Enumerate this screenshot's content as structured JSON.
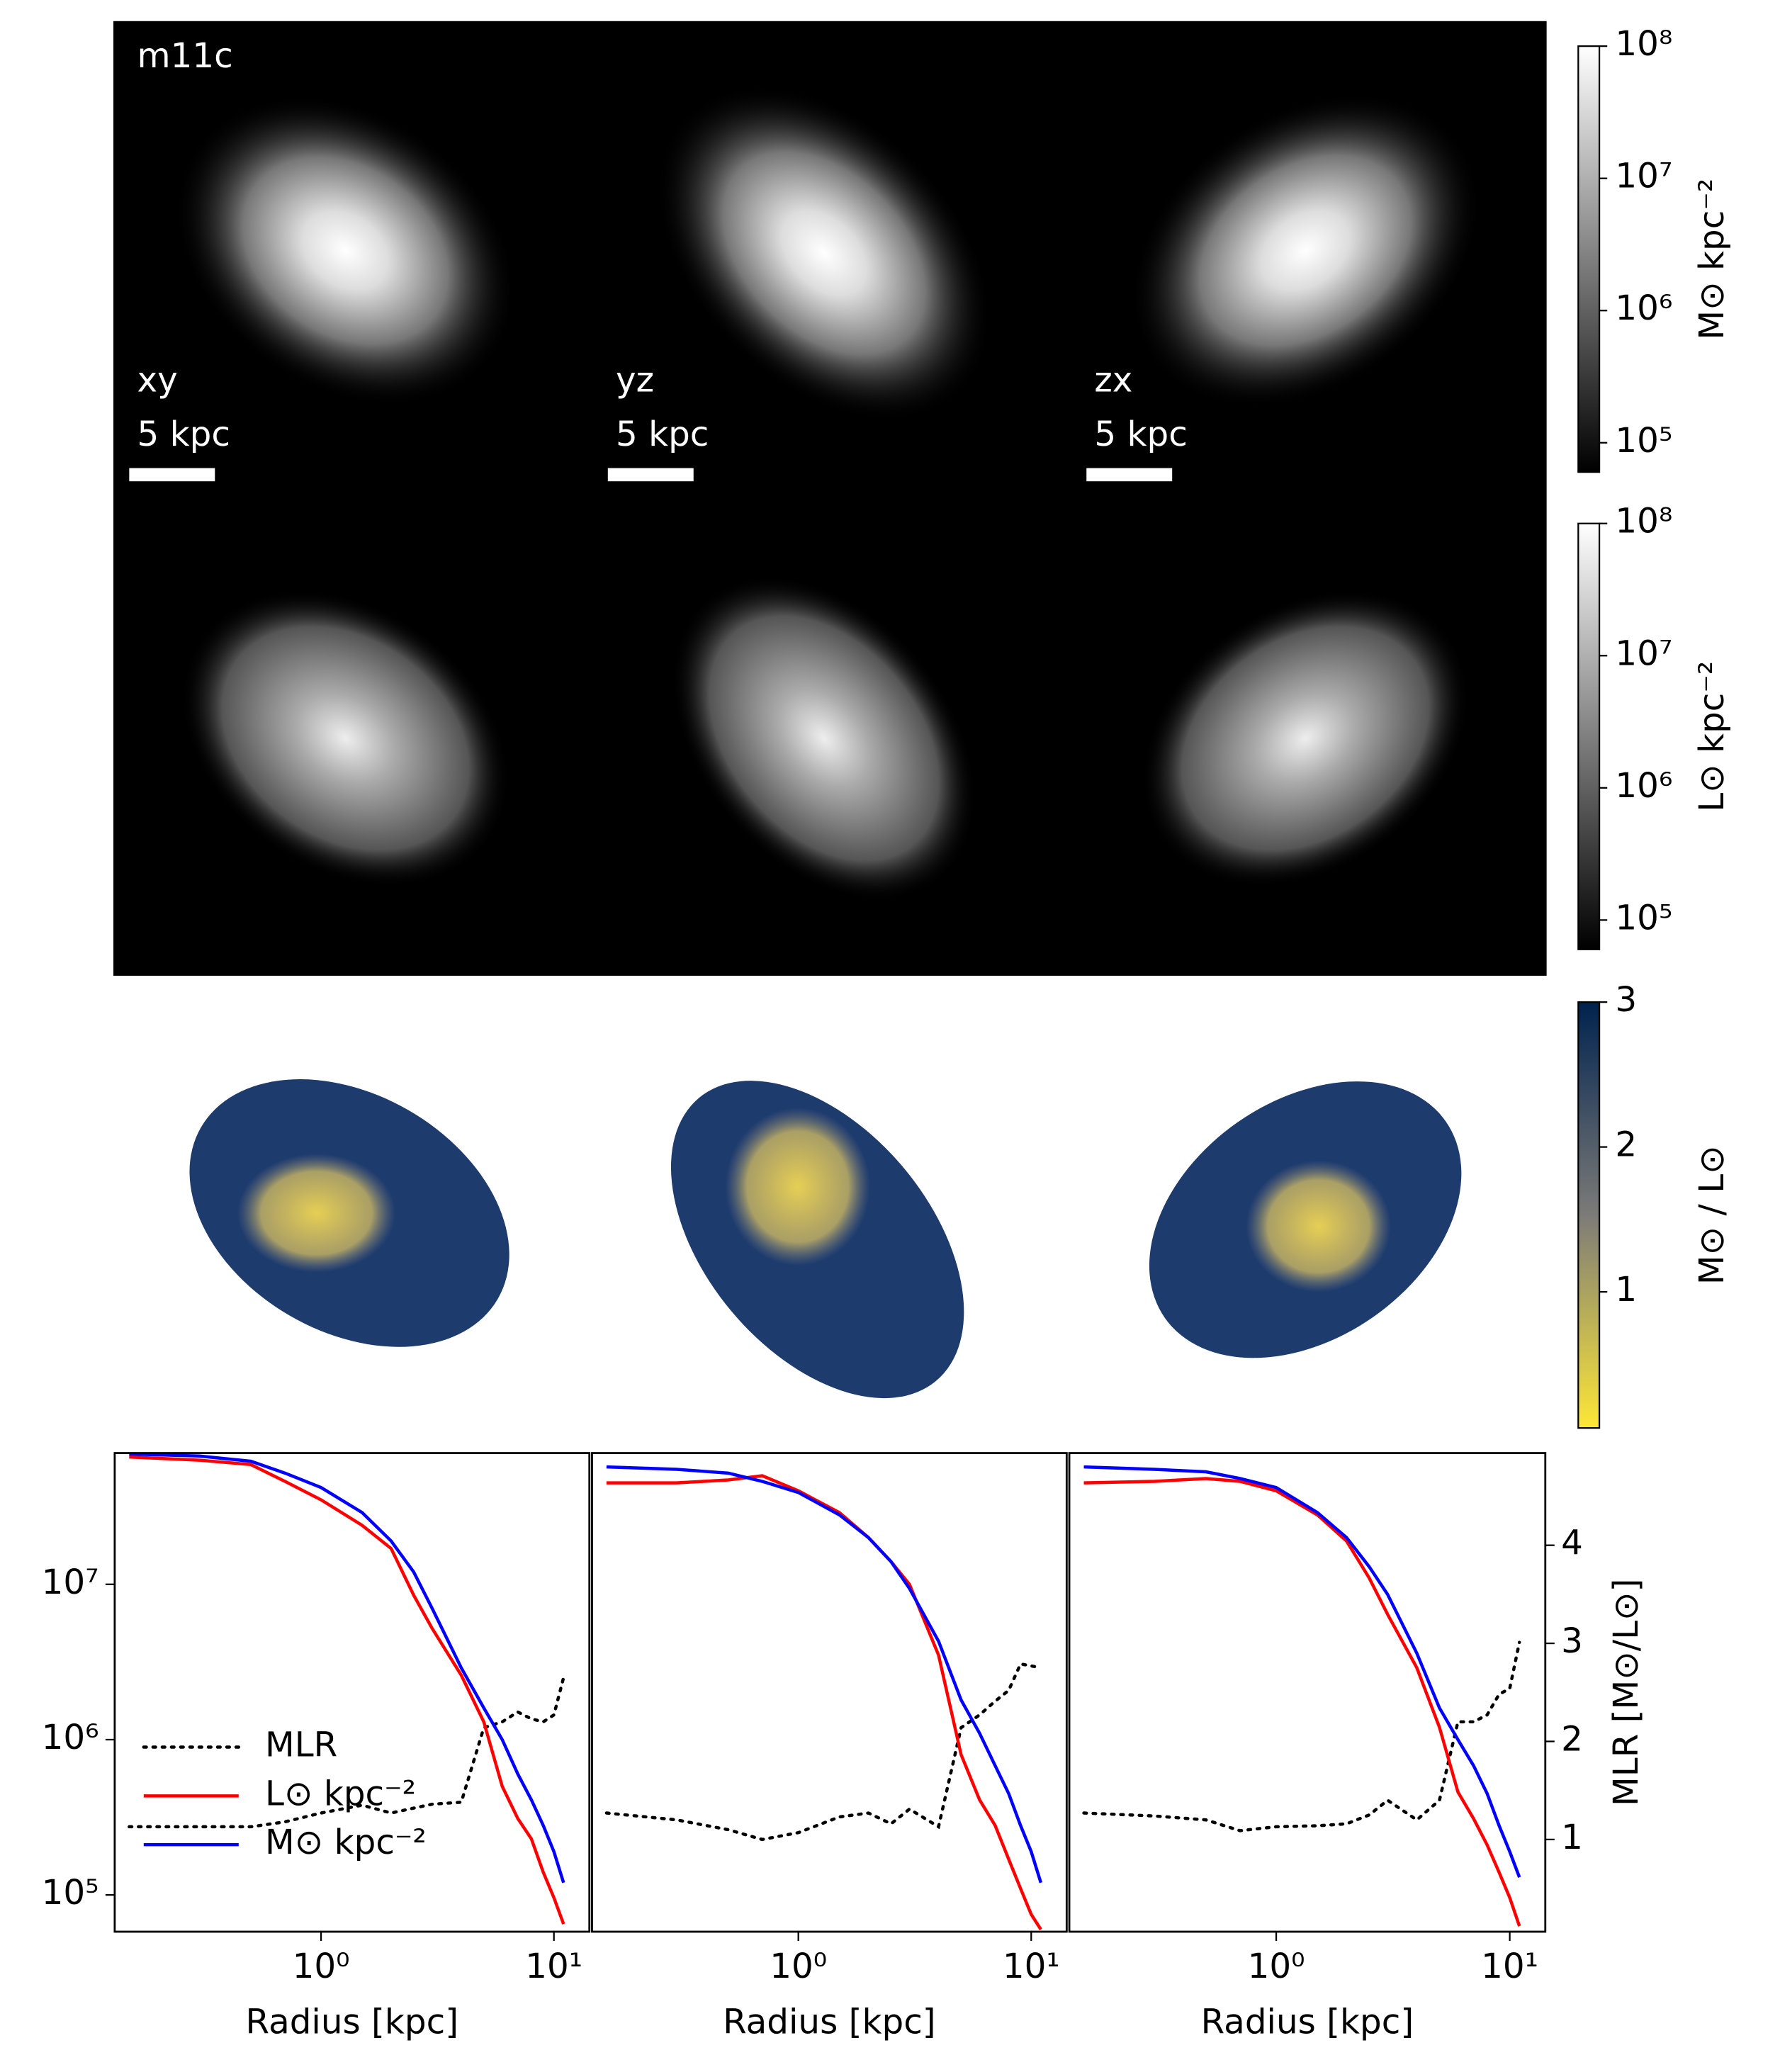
{
  "maps": {
    "title": "m11c",
    "projections": [
      "xy",
      "yz",
      "zx"
    ],
    "scale_bar": "5 kpc"
  },
  "colorbars": [
    {
      "label": "M⊙ kpc⁻²",
      "log": true,
      "colormap": "gray",
      "lim": [
        60000,
        100000000
      ],
      "ticks": [
        {
          "value": 100000,
          "label": "10⁵"
        },
        {
          "value": 1000000,
          "label": "10⁶"
        },
        {
          "value": 10000000,
          "label": "10⁷"
        },
        {
          "value": 100000000,
          "label": "10⁸"
        }
      ]
    },
    {
      "label": "L⊙ kpc⁻²",
      "log": true,
      "colormap": "gray",
      "lim": [
        60000,
        100000000
      ],
      "ticks": [
        {
          "value": 100000,
          "label": "10⁵"
        },
        {
          "value": 1000000,
          "label": "10⁶"
        },
        {
          "value": 10000000,
          "label": "10⁷"
        },
        {
          "value": 100000000,
          "label": "10⁸"
        }
      ]
    },
    {
      "label": "M⊙ / L⊙",
      "log": false,
      "colormap": "cividis",
      "lim": [
        0.06,
        3
      ],
      "ticks": [
        1,
        2,
        3
      ]
    }
  ],
  "chart_data": [
    {
      "type": "line",
      "xlabel": "Radius [kpc]",
      "xlog": true,
      "ylog": true,
      "legend": "lower left",
      "xlim": [
        0.13,
        14.2
      ],
      "xticks": [
        {
          "value": 1,
          "label": "10⁰"
        },
        {
          "value": 10,
          "label": "10¹"
        }
      ],
      "ylim": [
        58000,
        70000000
      ],
      "yticks": [
        {
          "value": 100000,
          "label": "10⁵"
        },
        {
          "value": 1000000,
          "label": "10⁶"
        },
        {
          "value": 10000000,
          "label": "10⁷"
        }
      ],
      "y2lim": [
        0.06,
        4.94
      ],
      "x": [
        0.15,
        0.3,
        0.5,
        0.7,
        1,
        1.5,
        2,
        2.5,
        3,
        4,
        5,
        6,
        7,
        8,
        9,
        10,
        11
      ],
      "series": [
        {
          "name": "MLR",
          "color": "black",
          "dash": "dotted",
          "axis": "y2",
          "values": [
            1.13,
            1.13,
            1.13,
            1.18,
            1.27,
            1.35,
            1.27,
            1.32,
            1.36,
            1.38,
            2.14,
            2.2,
            2.3,
            2.23,
            2.2,
            2.27,
            2.65
          ]
        },
        {
          "name": "L⊙ kpc⁻²",
          "color": "red",
          "values": [
            66000000,
            63000000,
            59000000,
            46000000,
            35000000,
            24000000,
            17000000,
            8500000,
            5200000,
            2600000,
            1300000,
            500000,
            310000,
            230000,
            140000,
            96000,
            65000
          ]
        },
        {
          "name": "M⊙ kpc⁻²",
          "color": "blue",
          "values": [
            69000000,
            67000000,
            62000000,
            52000000,
            42000000,
            29000000,
            19000000,
            12000000,
            7000000,
            2900000,
            1600000,
            1000000,
            600000,
            410000,
            280000,
            190000,
            120000
          ]
        }
      ]
    },
    {
      "type": "line",
      "xlabel": "Radius [kpc]",
      "xlog": true,
      "ylog": true,
      "xlim": [
        0.13,
        14.2
      ],
      "xticks": [
        {
          "value": 1,
          "label": "10⁰"
        },
        {
          "value": 10,
          "label": "10¹"
        }
      ],
      "ylim": [
        58000,
        70000000
      ],
      "y2lim": [
        0.06,
        4.94
      ],
      "x": [
        0.15,
        0.3,
        0.5,
        0.7,
        1,
        1.5,
        2,
        2.5,
        3,
        4,
        5,
        6,
        7,
        8,
        9,
        10,
        11
      ],
      "series": [
        {
          "color": "black",
          "dash": "dotted",
          "axis": "y2",
          "values": [
            1.27,
            1.2,
            1.1,
            1.0,
            1.07,
            1.23,
            1.27,
            1.16,
            1.31,
            1.13,
            2.14,
            2.27,
            2.41,
            2.52,
            2.79,
            2.77,
            2.75
          ]
        },
        {
          "color": "red",
          "values": [
            45000000,
            45000000,
            47000000,
            50000000,
            40000000,
            29000000,
            20000000,
            14000000,
            10000000,
            3500000,
            800000,
            410000,
            280000,
            170000,
            110000,
            75000,
            60000
          ]
        },
        {
          "color": "blue",
          "values": [
            57000000,
            55000000,
            52000000,
            46000000,
            39000000,
            28000000,
            20000000,
            14000000,
            9400000,
            4300000,
            1800000,
            1100000,
            680000,
            450000,
            280000,
            190000,
            120000
          ]
        }
      ]
    },
    {
      "type": "line",
      "xlabel": "Radius [kpc]",
      "xlog": true,
      "ylog": true,
      "xlim": [
        0.13,
        14.2
      ],
      "xticks": [
        {
          "value": 1,
          "label": "10⁰"
        },
        {
          "value": 10,
          "label": "10¹"
        }
      ],
      "ylim": [
        58000,
        70000000
      ],
      "y2lim": [
        0.06,
        4.94
      ],
      "y2ticks": [
        1,
        2,
        3,
        4
      ],
      "y2label": "MLR [M⊙/L⊙]",
      "x": [
        0.15,
        0.3,
        0.5,
        0.7,
        1,
        1.5,
        2,
        2.5,
        3,
        4,
        5,
        6,
        7,
        8,
        9,
        10,
        11
      ],
      "series": [
        {
          "color": "black",
          "dash": "dotted",
          "axis": "y2",
          "values": [
            1.27,
            1.24,
            1.2,
            1.09,
            1.13,
            1.14,
            1.16,
            1.25,
            1.4,
            1.2,
            1.4,
            2.2,
            2.2,
            2.27,
            2.48,
            2.54,
            3.01
          ]
        },
        {
          "color": "red",
          "values": [
            45000000,
            46000000,
            48000000,
            46000000,
            40000000,
            28000000,
            19000000,
            11000000,
            6400000,
            2900000,
            1200000,
            460000,
            310000,
            210000,
            140000,
            96000,
            63000
          ]
        },
        {
          "color": "blue",
          "values": [
            57000000,
            55000000,
            53000000,
            48000000,
            42000000,
            29000000,
            20000000,
            13000000,
            8600000,
            3600000,
            1600000,
            1000000,
            680000,
            450000,
            280000,
            190000,
            130000
          ]
        }
      ]
    }
  ]
}
